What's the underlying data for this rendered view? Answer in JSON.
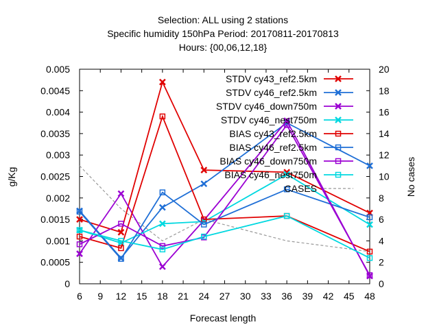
{
  "chart_data": {
    "type": "line",
    "title_lines": [
      "Selection: ALL using     2 stations",
      "Specific humidity 150hPa   Period: 20170811-20170813",
      "Hours: {00,06,12,18}"
    ],
    "xlabel": "Forecast length",
    "ylabel": "g/Kg",
    "y2label": "No cases",
    "x": [
      6,
      12,
      18,
      24,
      36,
      48
    ],
    "xlim": [
      6,
      48
    ],
    "xticks": [
      "6",
      "9",
      "12",
      "15",
      "18",
      "21",
      "24",
      "27",
      "30",
      "33",
      "36",
      "39",
      "42",
      "45",
      "48"
    ],
    "ylim": [
      0,
      0.005
    ],
    "yticks": [
      "0",
      "0.0005",
      "0.001",
      "0.0015",
      "0.002",
      "0.0025",
      "0.003",
      "0.0035",
      "0.004",
      "0.0045",
      "0.005"
    ],
    "y2lim": [
      0,
      20
    ],
    "y2ticks": [
      "0",
      "2",
      "4",
      "6",
      "8",
      "10",
      "12",
      "14",
      "16",
      "18",
      "20"
    ],
    "legend_position": "top-right",
    "grid": false,
    "series": [
      {
        "name": "STDV cy43_ref2.5km",
        "color": "#e00000",
        "marker": "x",
        "values": [
          0.0015,
          0.0012,
          0.0047,
          0.00265,
          0.0026,
          0.00165
        ]
      },
      {
        "name": "STDV cy46_ref2.5km",
        "color": "#1f6fd6",
        "marker": "x",
        "values": [
          0.0017,
          0.0006,
          0.00178,
          0.00233,
          0.00375,
          0.00275
        ]
      },
      {
        "name": "STDV cy46_down750m",
        "color": "#9b00d3",
        "marker": "x",
        "values": [
          0.0007,
          0.0021,
          0.0004,
          0.00148,
          0.0038,
          0.00018
        ]
      },
      {
        "name": "STDV cy46_nest750m",
        "color": "#00d8e0",
        "marker": "x",
        "values": [
          0.00125,
          0.00095,
          0.0014,
          0.00145,
          0.00255,
          0.00138
        ]
      },
      {
        "name": "BIAS cy43_ref2.5km",
        "color": "#e00000",
        "marker": "square",
        "values": [
          0.0011,
          0.00083,
          0.0039,
          0.0015,
          0.00158,
          0.00075
        ]
      },
      {
        "name": "BIAS cy46_ref2.5km",
        "color": "#1f6fd6",
        "marker": "square",
        "values": [
          0.00168,
          0.00058,
          0.00213,
          0.00138,
          0.0022,
          0.00155
        ]
      },
      {
        "name": "BIAS cy46_down750m",
        "color": "#9b00d3",
        "marker": "square",
        "values": [
          0.00092,
          0.0014,
          0.00088,
          0.00108,
          0.0037,
          0.0002
        ]
      },
      {
        "name": "BIAS cy46_nest750m",
        "color": "#00d8e0",
        "marker": "square",
        "values": [
          0.00125,
          0.001,
          0.0008,
          0.0011,
          0.00158,
          0.0006
        ]
      }
    ],
    "cases": {
      "name": "CASES",
      "color": "#999999",
      "values": [
        11,
        7,
        4,
        6,
        4,
        3
      ]
    }
  }
}
